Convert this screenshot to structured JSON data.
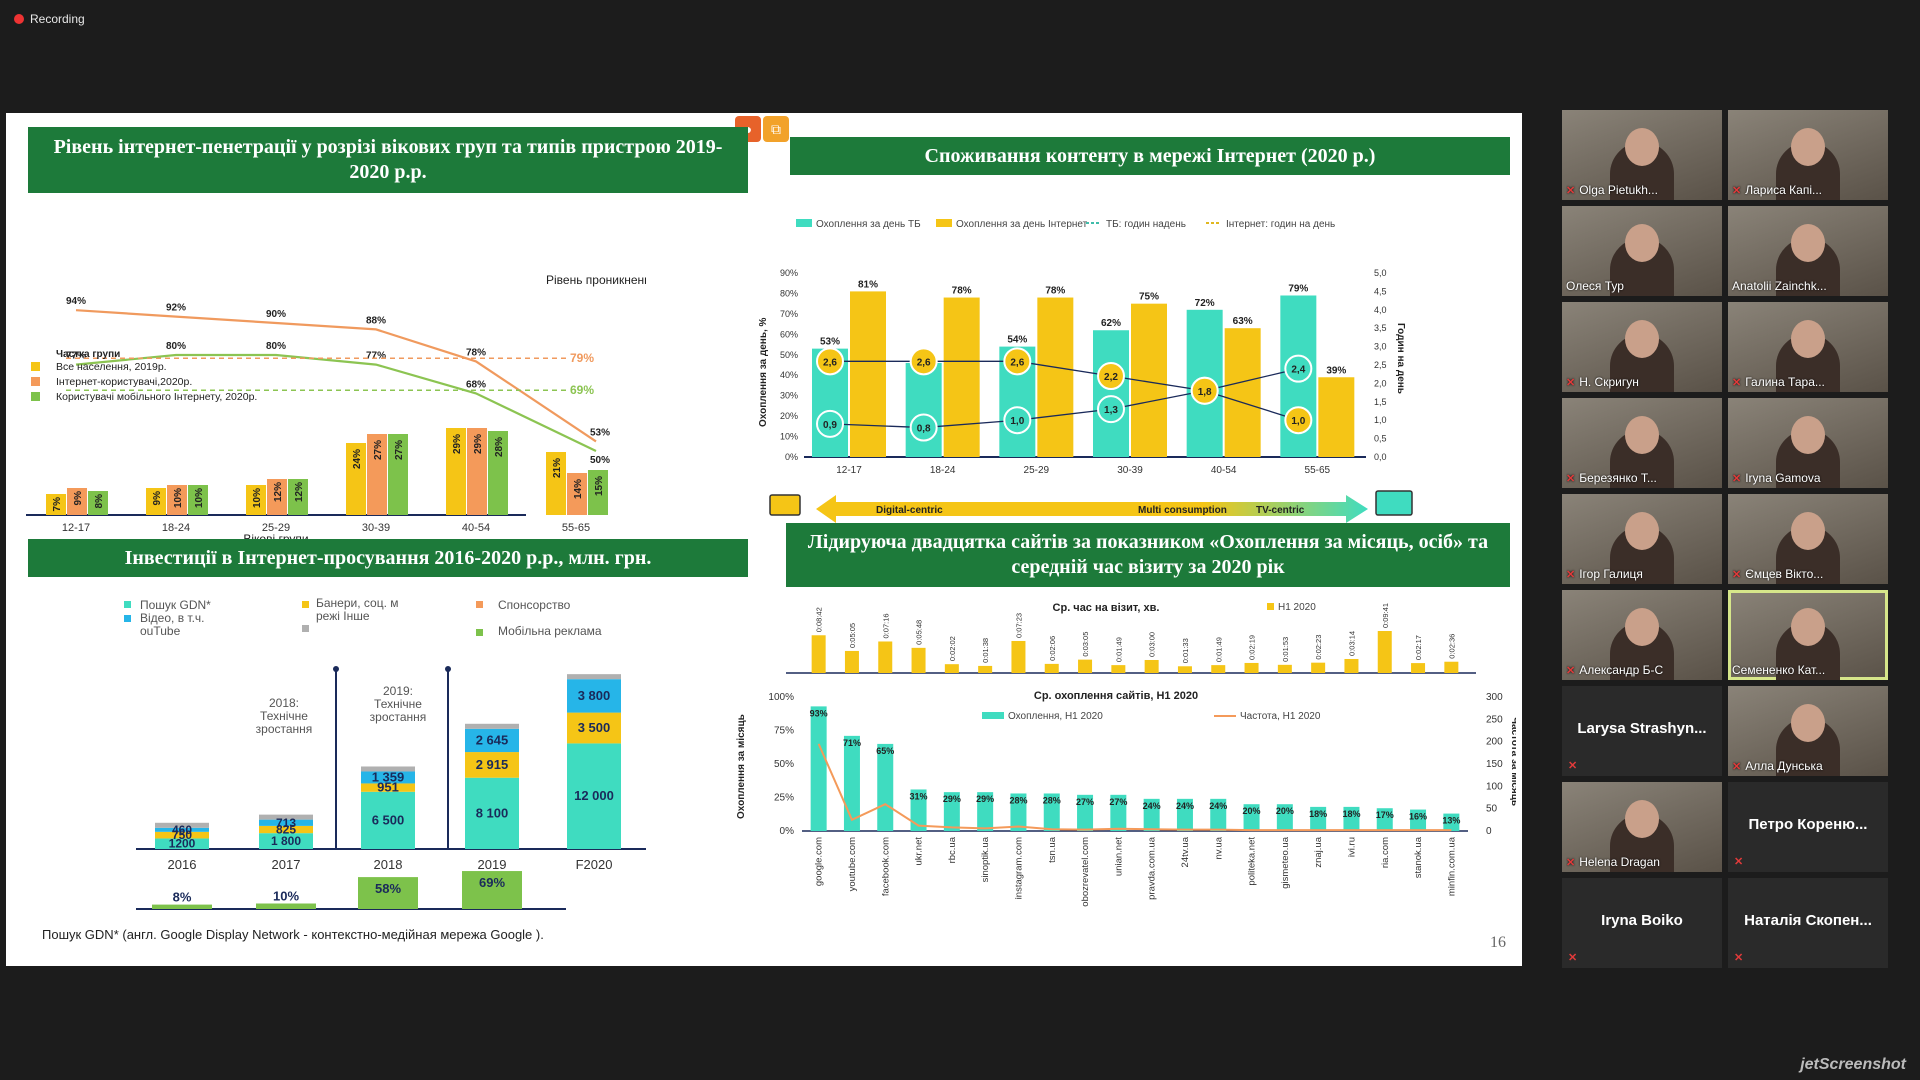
{
  "recording": "Recording",
  "slide": {
    "page": "16",
    "q1": {
      "title": "Рівень інтернет-пенетрації у розрізі вікових груп та типів пристрою 2019-2020 р.р.",
      "level_label": "Рівень проникнення",
      "legend_title": "Частка групи",
      "legend": [
        "Все населення, 2019р.",
        "Інтернет-користувачі,2020р.",
        "Користувачі мобільного Інтернету, 2020р."
      ],
      "xlabel": "Вікові групи",
      "categories": [
        "12-17",
        "18-24",
        "25-29",
        "30-39",
        "40-54",
        "55-65"
      ],
      "bars": [
        [
          "7%",
          "9%",
          "8%"
        ],
        [
          "9%",
          "10%",
          "10%"
        ],
        [
          "10%",
          "12%",
          "12%"
        ],
        [
          "24%",
          "27%",
          "27%"
        ],
        [
          "29%",
          "29%",
          "28%"
        ],
        [
          "21%",
          "14%",
          "15%"
        ]
      ],
      "line1_labels": [
        "94%",
        "92%",
        "90%",
        "88%",
        "78%",
        "53%"
      ],
      "line2_labels": [
        "77%",
        "80%",
        "80%",
        "77%",
        "68%",
        "50%"
      ],
      "avg1": "79%",
      "avg2": "69%"
    },
    "q2": {
      "title": "Споживання контенту в мережі Інтернет (2020 р.)",
      "legend": [
        "Охоплення за день ТБ",
        "Охоплення за день Інтернет",
        "ТБ: годин надень",
        "Інтернет: годин на день"
      ],
      "ylabel": "Охоплення за день, %",
      "y2label": "Годин на день",
      "yticks": [
        "0%",
        "10%",
        "20%",
        "30%",
        "40%",
        "50%",
        "60%",
        "70%",
        "80%",
        "90%"
      ],
      "y2ticks": [
        "0,0",
        "0,5",
        "1,0",
        "1,5",
        "2,0",
        "2,5",
        "3,0",
        "3,5",
        "4,0",
        "4,5",
        "5,0"
      ],
      "categories": [
        "12-17",
        "18-24",
        "25-29",
        "30-39",
        "40-54",
        "55-65"
      ],
      "tv": [
        "53%",
        "46%",
        "54%",
        "62%",
        "72%",
        "79%"
      ],
      "net": [
        "81%",
        "78%",
        "78%",
        "75%",
        "63%",
        "39%"
      ],
      "tv_hours": [
        "0,9",
        "0,8",
        "1,0",
        "1,3",
        "1,8",
        "2,4"
      ],
      "net_hours": [
        "2,6",
        "2,6",
        "2,6",
        "2,2",
        "1,8",
        "1,0"
      ],
      "arrow_left": "Digital-centric",
      "arrow_mid": "Multi consumption",
      "arrow_right": "TV-centric"
    },
    "q3": {
      "title": "Інвестиції в Інтернет-просування 2016-2020 р.р., млн. грн.",
      "legend": [
        "Пошук GDN* Відео, в т.ч. YouTube",
        "Банери, соц. мережі Інше",
        "Спонсорство",
        "Мобільна реклама"
      ],
      "note2018": "2018: Технічне зростання",
      "note2019": "2019: Технічне зростання",
      "years": [
        "2016",
        "2017",
        "2018",
        "2019",
        "F2020"
      ],
      "seg_search": [
        "1200",
        "1 800",
        "6 500",
        "8 100",
        "12 000"
      ],
      "seg_banner": [
        "750",
        "825",
        "951",
        "2 915",
        "3 500"
      ],
      "seg_video": [
        "460",
        "713",
        "1 359",
        "2 645",
        "3 800"
      ],
      "mobile": [
        "8%",
        "10%",
        "58%",
        "69%"
      ],
      "footnote": "Пошук GDN* (англ. Google Display Network - контекстно-медійная мережа Google )."
    },
    "q4": {
      "title": "Лідируюча двадцятка сайтів за показником «Охоплення за місяць, осіб» та середній час візиту за 2020 рік",
      "time_title": "Ср. час на візит, хв.",
      "time_legend": "H1 2020",
      "times": [
        "0:08:42",
        "0:05:05",
        "0:07:16",
        "0:05:48",
        "0:02:02",
        "0:01:38",
        "0:07:23",
        "0:02:06",
        "0:03:05",
        "0:01:49",
        "0:03:00",
        "0:01:33",
        "0:01:49",
        "0:02:19",
        "0:01:53",
        "0:02:23",
        "0:03:14",
        "0:09:41",
        "0:02:17",
        "0:02:36"
      ],
      "reach_title": "Ср. охоплення сайтів, H1 2020",
      "reach_legend": "Охоплення, H1 2020",
      "freq_legend": "Частота, H1 2020",
      "ylabel": "Охоплення за місяць",
      "y2label": "Частота за місяць",
      "yticks": [
        "0%",
        "25%",
        "50%",
        "75%",
        "100%"
      ],
      "y2ticks": [
        "0",
        "50",
        "100",
        "150",
        "200",
        "250",
        "300"
      ],
      "sites": [
        "google.com",
        "youtube.com",
        "facebook.com",
        "ukr.net",
        "rbc.ua",
        "sinoptik.ua",
        "instagram.com",
        "tsn.ua",
        "obozrevatel.com",
        "unian.net",
        "pravda.com.ua",
        "24tv.ua",
        "nv.ua",
        "politeka.net",
        "gismeteo.ua",
        "znaj.ua",
        "ivi.ru",
        "ria.com",
        "stanok.ua",
        "minfin.com.ua"
      ],
      "reach": [
        "93%",
        "71%",
        "65%",
        "31%",
        "29%",
        "29%",
        "28%",
        "28%",
        "27%",
        "27%",
        "24%",
        "24%",
        "24%",
        "20%",
        "20%",
        "18%",
        "18%",
        "17%",
        "16%",
        "13%"
      ]
    }
  },
  "participants": [
    {
      "name": "Olga Pietukh...",
      "video": true,
      "muted": true
    },
    {
      "name": "Лариса Капі...",
      "video": true,
      "muted": true
    },
    {
      "name": "Олеся Тур",
      "video": true,
      "muted": false
    },
    {
      "name": "Anatolii Zainchk...",
      "video": true,
      "muted": false
    },
    {
      "name": "Н. Скригун",
      "video": true,
      "muted": true
    },
    {
      "name": "Галина Тара...",
      "video": true,
      "muted": true
    },
    {
      "name": "Березянко Т...",
      "video": true,
      "muted": true
    },
    {
      "name": "Iryna Gamova",
      "video": true,
      "muted": true
    },
    {
      "name": "Ігор Галиця",
      "video": true,
      "muted": true
    },
    {
      "name": "Ємцев Вікто...",
      "video": true,
      "muted": true
    },
    {
      "name": "Александр Б-С",
      "video": true,
      "muted": true
    },
    {
      "name": "Семененко Кат...",
      "video": true,
      "muted": false
    },
    {
      "name": "Larysa Strashyn...",
      "video": false,
      "muted": true
    },
    {
      "name": "Алла Дунська",
      "video": true,
      "muted": true
    },
    {
      "name": "Helena Dragan",
      "video": true,
      "muted": true
    },
    {
      "name": "Петро Кореню...",
      "video": false,
      "muted": true
    },
    {
      "name": "Iryna Boiko",
      "video": false,
      "muted": true
    },
    {
      "name": "Наталія Скопен...",
      "video": false,
      "muted": true
    }
  ],
  "watermark": "jetScreenshot",
  "colors": {
    "green": "#1d7a3a",
    "teal": "#3fdcc0",
    "yellow": "#f5c516",
    "orange": "#f49a5a",
    "lgreen": "#7dc24b",
    "blue": "#26b5e8",
    "grey": "#b0b0b0"
  }
}
